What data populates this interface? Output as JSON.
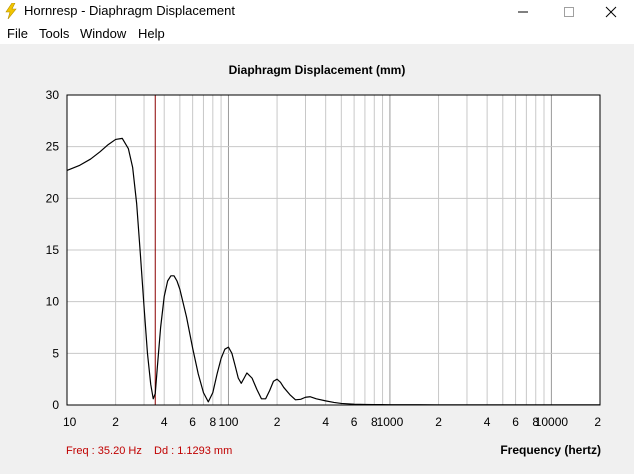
{
  "window": {
    "title": "Hornresp - Diaphragm Displacement",
    "icon": "lightning-bolt-icon"
  },
  "menu": [
    "File",
    "Tools",
    "Window",
    "Help"
  ],
  "status": {
    "freq": "Freq : 35.20 Hz",
    "dd": "Dd : 1.1293 mm"
  },
  "colors": {
    "curve": "#000000",
    "cursor": "#8b0000",
    "status_text": "#c00000",
    "grid": "#c8c8c8",
    "grid_decade": "#9a9a9a",
    "plot_bg": "#ffffff",
    "window_bg": "#f0f0f0"
  },
  "chart_data": {
    "type": "line",
    "title": "Diaphragm Displacement (mm)",
    "xlabel": "Frequency (hertz)",
    "ylabel": "",
    "x_scale": "log",
    "xlim": [
      10,
      20000
    ],
    "ylim": [
      0,
      30
    ],
    "y_ticks": [
      0,
      5,
      10,
      15,
      20,
      25,
      30
    ],
    "x_ticks": [
      {
        "v": 10,
        "label": "10"
      },
      {
        "v": 20,
        "label": "2"
      },
      {
        "v": 40,
        "label": "4"
      },
      {
        "v": 60,
        "label": "6"
      },
      {
        "v": 80,
        "label": "8"
      },
      {
        "v": 100,
        "label": "100"
      },
      {
        "v": 200,
        "label": "2"
      },
      {
        "v": 400,
        "label": "4"
      },
      {
        "v": 600,
        "label": "6"
      },
      {
        "v": 800,
        "label": "8"
      },
      {
        "v": 1000,
        "label": "1000"
      },
      {
        "v": 2000,
        "label": "2"
      },
      {
        "v": 4000,
        "label": "4"
      },
      {
        "v": 6000,
        "label": "6"
      },
      {
        "v": 8000,
        "label": "8"
      },
      {
        "v": 10000,
        "label": "10000"
      },
      {
        "v": 20000,
        "label": "2"
      }
    ],
    "grid": true,
    "cursor_x": 35.2,
    "series": [
      {
        "x": [
          10,
          12,
          14,
          16,
          18,
          20,
          22,
          24,
          25.5,
          27,
          28.5,
          30,
          31.5,
          33,
          34.2,
          35.2,
          36.2,
          38,
          40,
          42,
          44,
          46,
          48,
          50,
          55,
          60,
          65,
          70,
          75,
          80,
          85,
          90,
          95,
          100,
          105,
          110,
          115,
          120,
          125,
          130,
          140,
          150,
          160,
          170,
          180,
          190,
          200,
          210,
          220,
          240,
          260,
          280,
          300,
          320,
          350,
          400,
          450,
          500,
          600,
          700,
          800,
          1000,
          1500,
          2000,
          5000,
          10000,
          20000
        ],
        "y": [
          22.7,
          23.2,
          23.8,
          24.5,
          25.2,
          25.7,
          25.8,
          24.8,
          23.0,
          19.5,
          14.5,
          9.5,
          5.0,
          2.0,
          0.6,
          1.1,
          3.5,
          7.5,
          10.5,
          12.0,
          12.5,
          12.5,
          12.0,
          11.2,
          8.5,
          5.5,
          3.0,
          1.2,
          0.3,
          1.2,
          3.0,
          4.5,
          5.4,
          5.6,
          5.0,
          3.8,
          2.6,
          2.1,
          2.6,
          3.1,
          2.6,
          1.5,
          0.6,
          0.6,
          1.4,
          2.3,
          2.5,
          2.2,
          1.7,
          1.0,
          0.5,
          0.55,
          0.75,
          0.8,
          0.6,
          0.4,
          0.25,
          0.15,
          0.08,
          0.05,
          0.04,
          0.03,
          0.03,
          0.02,
          0.02,
          0.02,
          0.02
        ]
      }
    ]
  }
}
